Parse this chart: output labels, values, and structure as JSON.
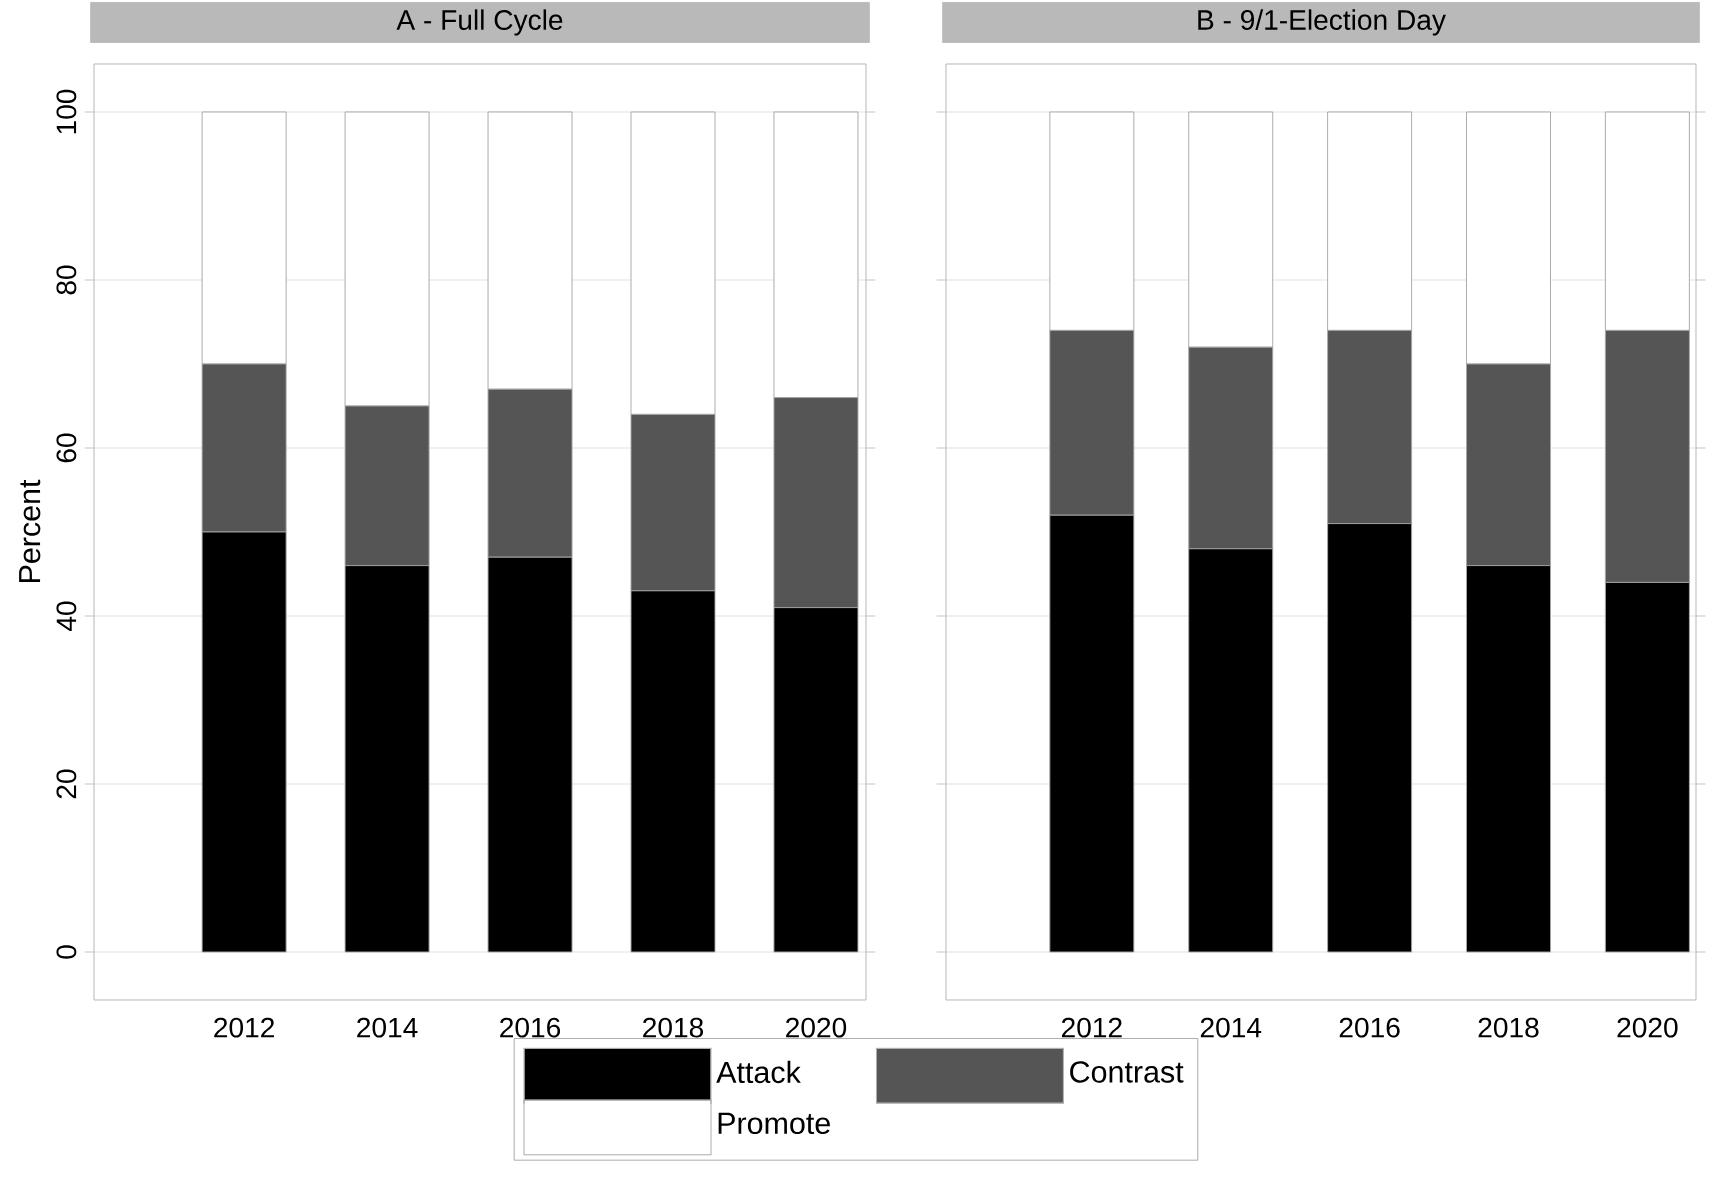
{
  "chart_data": [
    {
      "type": "bar",
      "title": "A - Full Cycle",
      "ylabel": "Percent",
      "stacked": true,
      "categories": [
        "2012",
        "2014",
        "2016",
        "2018",
        "2020"
      ],
      "ylim": [
        0,
        100
      ],
      "yticks": [
        0,
        20,
        40,
        60,
        80,
        100
      ],
      "grid": "y",
      "legend": "bottom",
      "series": [
        {
          "name": "Attack",
          "color": "#000000",
          "values": [
            50,
            46,
            47,
            43,
            41
          ]
        },
        {
          "name": "Contrast",
          "color": "#555555",
          "values": [
            20,
            19,
            20,
            21,
            25
          ]
        },
        {
          "name": "Promote",
          "color": "#ffffff",
          "values": [
            30,
            35,
            33,
            36,
            34
          ]
        }
      ]
    },
    {
      "type": "bar",
      "title": "B - 9/1-Election Day",
      "stacked": true,
      "categories": [
        "2012",
        "2014",
        "2016",
        "2018",
        "2020"
      ],
      "ylim": [
        0,
        100
      ],
      "yticks": [
        0,
        20,
        40,
        60,
        80,
        100
      ],
      "grid": "y",
      "tick_labels": "x",
      "series": [
        {
          "color": "#000000",
          "values": [
            52,
            48,
            51,
            46,
            44
          ]
        },
        {
          "color": "#555555",
          "values": [
            22,
            24,
            23,
            24,
            30
          ]
        },
        {
          "color": "#ffffff",
          "values": [
            26,
            28,
            26,
            30,
            26
          ]
        }
      ]
    }
  ]
}
